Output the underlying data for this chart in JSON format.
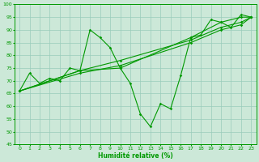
{
  "xlabel": "Humidité relative (%)",
  "xlim": [
    -0.5,
    23.5
  ],
  "ylim": [
    45,
    100
  ],
  "yticks": [
    45,
    50,
    55,
    60,
    65,
    70,
    75,
    80,
    85,
    90,
    95,
    100
  ],
  "xticks": [
    0,
    1,
    2,
    3,
    4,
    5,
    6,
    7,
    8,
    9,
    10,
    11,
    12,
    13,
    14,
    15,
    16,
    17,
    18,
    19,
    20,
    21,
    22,
    23
  ],
  "bg_color": "#cce8d8",
  "grid_color": "#99ccbb",
  "line_color": "#009900",
  "line1_x": [
    0,
    1,
    2,
    3,
    4,
    5,
    6,
    7,
    8,
    9,
    10,
    11,
    12,
    13,
    14,
    15,
    16,
    17,
    18,
    19,
    20,
    21,
    22,
    23
  ],
  "line1_y": [
    66,
    73,
    69,
    71,
    70,
    75,
    74,
    90,
    87,
    83,
    75,
    69,
    57,
    52,
    61,
    59,
    72,
    87,
    88,
    94,
    93,
    91,
    96,
    95
  ],
  "line2_x": [
    0,
    6,
    10,
    17,
    20,
    22,
    23
  ],
  "line2_y": [
    66,
    74,
    75,
    87,
    93,
    95,
    95
  ],
  "line3_x": [
    0,
    6,
    10,
    17,
    20,
    22,
    23
  ],
  "line3_y": [
    66,
    74,
    78,
    86,
    91,
    93,
    95
  ],
  "line4_x": [
    0,
    6,
    10,
    17,
    20,
    22,
    23
  ],
  "line4_y": [
    66,
    73,
    76,
    85,
    90,
    92,
    95
  ]
}
